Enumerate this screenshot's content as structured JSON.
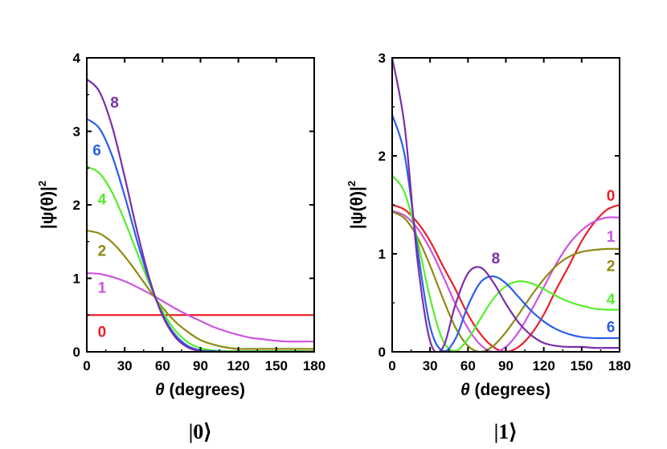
{
  "chart_data": [
    {
      "type": "line",
      "panel_caption": "|0⟩",
      "xlabel_symbol": "θ",
      "xlabel": " (degrees)",
      "ylabel": "|ψ(θ)|",
      "ylabel_sup": "2",
      "xlim": [
        0,
        180
      ],
      "ylim": [
        0,
        4
      ],
      "xticks": [
        0,
        30,
        60,
        90,
        120,
        150,
        180
      ],
      "yticks": [
        0,
        1,
        2,
        3,
        4
      ],
      "x": [
        0,
        10,
        20,
        30,
        40,
        50,
        60,
        70,
        80,
        90,
        100,
        110,
        120,
        130,
        140,
        150,
        160,
        170,
        180
      ],
      "series": [
        {
          "name": "0",
          "color": "#e8202a",
          "label_at": [
            12,
            0.28
          ],
          "values": [
            0.5,
            0.5,
            0.5,
            0.5,
            0.5,
            0.5,
            0.5,
            0.5,
            0.5,
            0.5,
            0.5,
            0.5,
            0.5,
            0.5,
            0.5,
            0.5,
            0.5,
            0.5,
            0.5
          ]
        },
        {
          "name": "1",
          "color": "#cc55e0",
          "label_at": [
            12,
            0.88
          ],
          "values": [
            1.07,
            1.06,
            1.02,
            0.96,
            0.88,
            0.79,
            0.69,
            0.59,
            0.5,
            0.42,
            0.34,
            0.28,
            0.23,
            0.19,
            0.17,
            0.15,
            0.14,
            0.14,
            0.14
          ]
        },
        {
          "name": "2",
          "color": "#8f8a14",
          "label_at": [
            12,
            1.38
          ],
          "values": [
            1.65,
            1.61,
            1.49,
            1.3,
            1.07,
            0.83,
            0.6,
            0.41,
            0.27,
            0.16,
            0.1,
            0.06,
            0.04,
            0.04,
            0.04,
            0.04,
            0.04,
            0.04,
            0.04
          ]
        },
        {
          "name": "4",
          "color": "#55ee2a",
          "label_at": [
            12,
            2.08
          ],
          "values": [
            2.52,
            2.43,
            2.17,
            1.78,
            1.34,
            0.91,
            0.55,
            0.29,
            0.13,
            0.05,
            0.02,
            0.01,
            0.01,
            0.01,
            0.01,
            0.01,
            0.01,
            0.01,
            0.01
          ]
        },
        {
          "name": "6",
          "color": "#2a5fe8",
          "label_at": [
            8,
            2.75
          ],
          "values": [
            3.17,
            3.04,
            2.67,
            2.12,
            1.5,
            0.94,
            0.51,
            0.23,
            0.08,
            0.02,
            0.01,
            0,
            0,
            0,
            0,
            0,
            0,
            0,
            0
          ]
        },
        {
          "name": "8",
          "color": "#7a2fa8",
          "label_at": [
            22,
            3.4
          ],
          "values": [
            3.71,
            3.54,
            3.07,
            2.38,
            1.63,
            0.97,
            0.49,
            0.2,
            0.06,
            0.01,
            0,
            0,
            0,
            0,
            0,
            0,
            0,
            0,
            0
          ]
        }
      ]
    },
    {
      "type": "line",
      "panel_caption": "|1⟩",
      "xlabel_symbol": "θ",
      "xlabel": " (degrees)",
      "ylabel": "|ψ(θ)|",
      "ylabel_sup": "2",
      "xlim": [
        0,
        180
      ],
      "ylim": [
        0,
        3
      ],
      "xticks": [
        0,
        30,
        60,
        90,
        120,
        150,
        180
      ],
      "yticks": [
        0,
        1,
        2,
        3
      ],
      "x": [
        0,
        10,
        20,
        30,
        40,
        50,
        60,
        70,
        80,
        90,
        100,
        110,
        120,
        130,
        140,
        150,
        160,
        170,
        180
      ],
      "series": [
        {
          "name": "0",
          "color": "#e8202a",
          "label_at": [
            173,
            1.6
          ],
          "values": [
            1.5,
            1.45,
            1.32,
            1.13,
            0.88,
            0.64,
            0.38,
            0.18,
            0.05,
            0.0,
            0.05,
            0.18,
            0.38,
            0.64,
            0.88,
            1.13,
            1.32,
            1.45,
            1.5
          ]
        },
        {
          "name": "1",
          "color": "#cc55e0",
          "label_at": [
            173,
            1.18
          ],
          "values": [
            1.44,
            1.39,
            1.26,
            1.05,
            0.78,
            0.49,
            0.24,
            0.07,
            0.0,
            0.05,
            0.2,
            0.42,
            0.66,
            0.9,
            1.1,
            1.24,
            1.33,
            1.37,
            1.37
          ]
        },
        {
          "name": "2",
          "color": "#8f8a14",
          "label_at": [
            173,
            0.88
          ],
          "values": [
            1.43,
            1.36,
            1.17,
            0.88,
            0.55,
            0.25,
            0.06,
            0.0,
            0.06,
            0.2,
            0.38,
            0.57,
            0.74,
            0.88,
            0.97,
            1.02,
            1.04,
            1.05,
            1.05
          ]
        },
        {
          "name": "4",
          "color": "#55ee2a",
          "label_at": [
            173,
            0.54
          ],
          "values": [
            1.8,
            1.62,
            1.14,
            0.55,
            0.12,
            0.01,
            0.13,
            0.34,
            0.54,
            0.67,
            0.72,
            0.7,
            0.64,
            0.57,
            0.51,
            0.47,
            0.44,
            0.43,
            0.43
          ]
        },
        {
          "name": "6",
          "color": "#2a5fe8",
          "label_at": [
            173,
            0.26
          ],
          "values": [
            2.42,
            2.0,
            1.06,
            0.26,
            0.01,
            0.13,
            0.47,
            0.71,
            0.77,
            0.7,
            0.56,
            0.42,
            0.31,
            0.23,
            0.18,
            0.15,
            0.14,
            0.14,
            0.14
          ]
        },
        {
          "name": "8",
          "color": "#7a2fa8",
          "label_at": [
            82,
            0.96
          ],
          "values": [
            3.0,
            2.29,
            0.94,
            0.11,
            0.04,
            0.48,
            0.8,
            0.86,
            0.71,
            0.49,
            0.3,
            0.17,
            0.09,
            0.06,
            0.05,
            0.05,
            0.04,
            0.04,
            0.04
          ]
        }
      ]
    }
  ]
}
